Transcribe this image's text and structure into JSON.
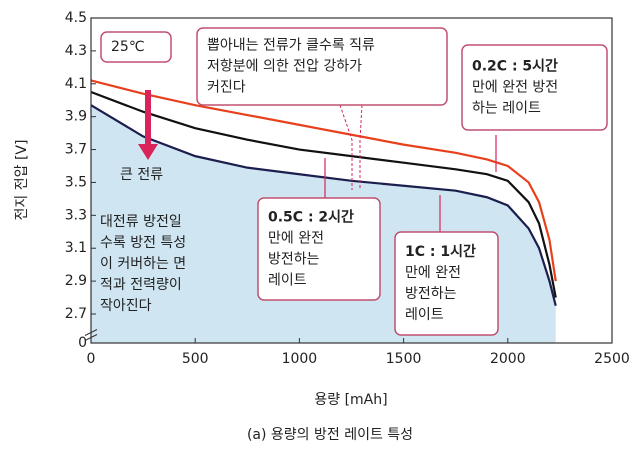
{
  "chart_data": {
    "type": "line",
    "x_label": "용량 [mAh]",
    "y_label": "전지 전압 [V]",
    "caption": "(a) 용량의 방전 레이트 특성",
    "x": [
      0,
      250,
      500,
      750,
      1000,
      1250,
      1500,
      1750,
      1900,
      2000,
      2100,
      2150,
      2200,
      2230
    ],
    "series": [
      {
        "name": "0.2C",
        "color": "#e8401c",
        "values": [
          4.12,
          4.04,
          3.97,
          3.91,
          3.85,
          3.79,
          3.73,
          3.68,
          3.64,
          3.6,
          3.5,
          3.38,
          3.15,
          2.9
        ]
      },
      {
        "name": "0.5C",
        "color": "#111111",
        "values": [
          4.05,
          3.93,
          3.83,
          3.76,
          3.7,
          3.66,
          3.62,
          3.58,
          3.55,
          3.51,
          3.38,
          3.25,
          3.0,
          2.8
        ]
      },
      {
        "name": "1C",
        "color": "#1c1f4d",
        "fill": "#cfe6f2",
        "values": [
          3.97,
          3.78,
          3.66,
          3.59,
          3.55,
          3.51,
          3.48,
          3.45,
          3.41,
          3.36,
          3.22,
          3.1,
          2.9,
          2.75
        ]
      }
    ],
    "xlim": [
      0,
      2500
    ],
    "xticks": [
      0,
      500,
      1000,
      1500,
      2000,
      2500
    ],
    "ylim": [
      0,
      4.5
    ],
    "yticks": [
      0,
      2.7,
      2.9,
      3.1,
      3.3,
      3.5,
      3.7,
      3.9,
      4.1,
      4.3,
      4.5
    ],
    "y_break": true,
    "grid": false,
    "annotations": [
      {
        "lines": [
          "25℃"
        ],
        "boxed": true
      },
      {
        "lines": [
          "뽑아내는 전류가 클수록 직류",
          "저항분에 의한 전압 강하가",
          "커진다"
        ],
        "boxed": true
      },
      {
        "lines": [
          "0.2C : 5시간",
          "만에 완전 방전",
          "하는 레이트"
        ],
        "boxed": true
      },
      {
        "lines": [
          "0.5C : 2시간",
          "만에 완전",
          "방전하는",
          "레이트"
        ],
        "boxed": true
      },
      {
        "lines": [
          "1C : 1시간",
          "만에 완전",
          "방전하는",
          "레이트"
        ],
        "boxed": true
      },
      {
        "lines": [
          "큰 전류"
        ],
        "boxed": false
      },
      {
        "lines": [
          "대전류 방전일",
          "수록 방전 특성",
          "이 커버하는 면",
          "적과 전력량이",
          "작아진다"
        ],
        "boxed": false
      }
    ]
  }
}
